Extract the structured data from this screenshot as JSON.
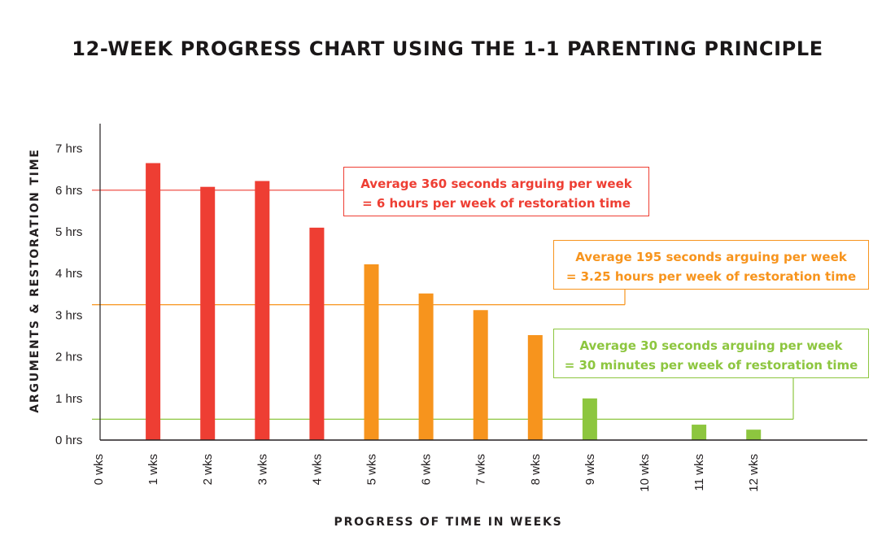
{
  "chart_data": {
    "type": "bar",
    "title": "12-WEEK PROGRESS CHART USING THE 1-1 PARENTING PRINCIPLE",
    "xlabel": "PROGRESS OF TIME IN WEEKS",
    "ylabel": "ARGUMENTS & RESTORATION TIME",
    "categories": [
      "0 wks",
      "1 wks",
      "2 wks",
      "3 wks",
      "4 wks",
      "5 wks",
      "6 wks",
      "7 wks",
      "8 wks",
      "9 wks",
      "10 wks",
      "11 wks",
      "12 wks"
    ],
    "values": [
      0,
      6.65,
      6.08,
      6.22,
      5.1,
      4.22,
      3.52,
      3.12,
      2.52,
      1.0,
      0,
      0.37,
      0.25
    ],
    "bar_colors": [
      "#ee3e33",
      "#ee3e33",
      "#ee3e33",
      "#ee3e33",
      "#ee3e33",
      "#f7941d",
      "#f7941d",
      "#f7941d",
      "#f7941d",
      "#8dc63f",
      "#8dc63f",
      "#8dc63f",
      "#8dc63f"
    ],
    "y_ticks": [
      0,
      1,
      2,
      3,
      4,
      5,
      6,
      7
    ],
    "y_tick_labels": [
      "0 hrs",
      "1 hrs",
      "2 hrs",
      "3 hrs",
      "4 hrs",
      "5 hrs",
      "6 hrs",
      "7 hrs"
    ],
    "ylim": [
      0,
      7.6
    ],
    "grid": false,
    "reference_lines": [
      {
        "value": 6.0,
        "color": "#ee3e33",
        "annotation": [
          "Average 360 seconds arguing per week",
          "= 6 hours per week of restoration time"
        ]
      },
      {
        "value": 3.25,
        "color": "#f7941d",
        "annotation": [
          "Average 195 seconds arguing per week",
          "= 3.25 hours per week of restoration time"
        ]
      },
      {
        "value": 0.5,
        "color": "#8dc63f",
        "annotation": [
          "Average 30 seconds arguing per week",
          "= 30 minutes per week of restoration time"
        ]
      }
    ]
  }
}
